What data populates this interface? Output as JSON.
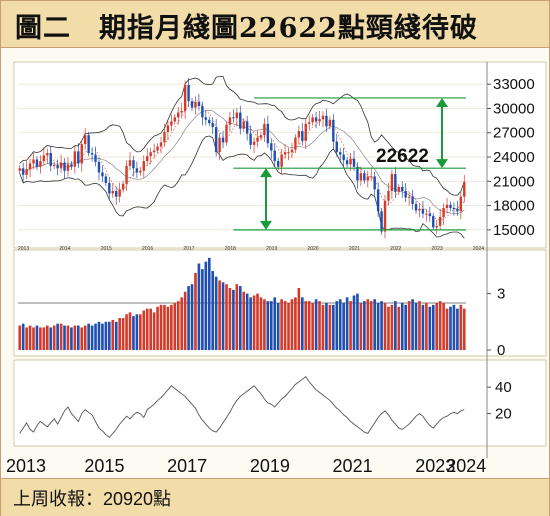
{
  "title": "圖二　期指月綫圖22622點頸綫待破",
  "footer": "上周收報：20920點",
  "colors": {
    "up": "#d23a2a",
    "down": "#1f4fb0",
    "green": "#1a9a3a",
    "band": "#333333",
    "line": "#555555",
    "title_bg": "#f2dca8",
    "panel_bg": "#fdfaf2"
  },
  "chart_data": [
    {
      "type": "candlestick",
      "y_ticks": [
        "33000",
        "30000",
        "27000",
        "24000",
        "21000",
        "18000",
        "15000"
      ],
      "x_year_labels_small": [
        "2013",
        "2014",
        "2015",
        "2016",
        "2017",
        "2018",
        "2019",
        "2020",
        "2021",
        "2022",
        "2023",
        "2024"
      ],
      "ylim": [
        13500,
        35000
      ],
      "close": [
        22600,
        21800,
        22500,
        23200,
        23700,
        22800,
        23500,
        24200,
        24500,
        22900,
        23000,
        22600,
        23300,
        22300,
        23100,
        22800,
        24700,
        23200,
        25600,
        26700,
        24500,
        24300,
        23400,
        22100,
        21600,
        20800,
        19500,
        19800,
        19100,
        20000,
        20700,
        22900,
        23600,
        22600,
        22100,
        22300,
        23500,
        24100,
        24600,
        24800,
        25300,
        25800,
        27100,
        27900,
        28400,
        28900,
        29500,
        29700,
        32900,
        30900,
        30100,
        30800,
        30300,
        28900,
        28600,
        28200,
        27700,
        24600,
        26400,
        25800,
        28000,
        28900,
        28800,
        29500,
        27500,
        28400,
        26900,
        25500,
        25900,
        26400,
        26700,
        28100,
        25700,
        24800,
        23500,
        22800,
        24300,
        24600,
        24600,
        24900,
        26400,
        27200,
        26000,
        28100,
        28300,
        28900,
        28400,
        28700,
        29100,
        27800,
        28600,
        25900,
        24600,
        24300,
        23600,
        23100,
        23800,
        22800,
        21100,
        22000,
        21100,
        21600,
        21600,
        20000,
        17300,
        14800,
        18600,
        19800,
        21900,
        19700,
        20300,
        19800,
        19000,
        19100,
        18200,
        17400,
        17600,
        17000,
        17000,
        16700,
        15300,
        15500,
        16600,
        17700,
        18100,
        17700,
        17600,
        17300,
        19100,
        20920
      ],
      "annotations": {
        "label": "22622",
        "neckline": 22622,
        "resistance": 31300,
        "support": 15000
      }
    },
    {
      "type": "bar",
      "y_ticks": [
        "3",
        "0"
      ],
      "ylim": [
        0,
        5
      ],
      "values": [
        1.3,
        1.4,
        1.2,
        1.3,
        1.2,
        1.3,
        1.2,
        1.2,
        1.3,
        1.2,
        1.3,
        1.4,
        1.4,
        1.3,
        1.3,
        1.2,
        1.3,
        1.3,
        1.2,
        1.3,
        1.4,
        1.3,
        1.4,
        1.5,
        1.4,
        1.5,
        1.5,
        1.6,
        1.5,
        1.7,
        1.7,
        1.9,
        2.0,
        1.8,
        1.9,
        1.9,
        2.1,
        2.2,
        2.2,
        2.0,
        2.3,
        2.4,
        2.4,
        2.3,
        2.4,
        2.5,
        2.6,
        2.8,
        3.1,
        3.4,
        3.5,
        4.1,
        4.6,
        4.3,
        4.7,
        4.9,
        4.2,
        3.9,
        3.7,
        3.6,
        3.5,
        3.3,
        3.2,
        3.5,
        3.4,
        3.1,
        3.0,
        2.8,
        2.9,
        3.0,
        2.8,
        2.7,
        2.6,
        2.6,
        2.8,
        2.5,
        2.7,
        2.6,
        2.5,
        2.7,
        2.8,
        3.3,
        2.8,
        2.6,
        2.6,
        2.5,
        2.7,
        2.6,
        2.4,
        2.5,
        2.4,
        2.4,
        2.6,
        2.7,
        2.5,
        2.8,
        2.6,
        2.9,
        3.0,
        2.5,
        2.6,
        2.7,
        2.6,
        2.7,
        2.5,
        2.6,
        2.5,
        2.3,
        2.4,
        2.6,
        2.3,
        2.5,
        2.4,
        2.6,
        2.7,
        2.5,
        2.6,
        2.4,
        2.5,
        2.3,
        2.4,
        2.5,
        2.6,
        2.5,
        2.2,
        2.3,
        2.4,
        2.2,
        2.4,
        2.2
      ],
      "reference_level": 2.5
    },
    {
      "type": "line",
      "y_ticks": [
        "40",
        "20"
      ],
      "ylim": [
        0,
        56
      ],
      "values": [
        5,
        9,
        13,
        8,
        6,
        11,
        14,
        12,
        10,
        13,
        16,
        12,
        17,
        22,
        25,
        20,
        17,
        14,
        20,
        23,
        21,
        19,
        14,
        9,
        7,
        4,
        2,
        5,
        8,
        12,
        15,
        18,
        16,
        19,
        21,
        20,
        17,
        23,
        25,
        27,
        30,
        32,
        35,
        38,
        41,
        39,
        37,
        35,
        33,
        30,
        27,
        24,
        19,
        15,
        12,
        9,
        7,
        6,
        9,
        13,
        17,
        21,
        26,
        30,
        33,
        35,
        37,
        39,
        41,
        38,
        35,
        31,
        28,
        27,
        25,
        28,
        31,
        33,
        36,
        39,
        42,
        44,
        46,
        48,
        44,
        41,
        38,
        36,
        34,
        32,
        30,
        27,
        24,
        22,
        19,
        17,
        14,
        12,
        10,
        8,
        6,
        5,
        9,
        13,
        17,
        20,
        22,
        19,
        15,
        12,
        9,
        8,
        10,
        12,
        15,
        18,
        20,
        18,
        14,
        11,
        9,
        12,
        15,
        17,
        18,
        20,
        21,
        20,
        22,
        23
      ]
    }
  ],
  "x_year_labels": [
    "2013",
    "2015",
    "2017",
    "2019",
    "2021",
    "2023",
    "2024"
  ]
}
